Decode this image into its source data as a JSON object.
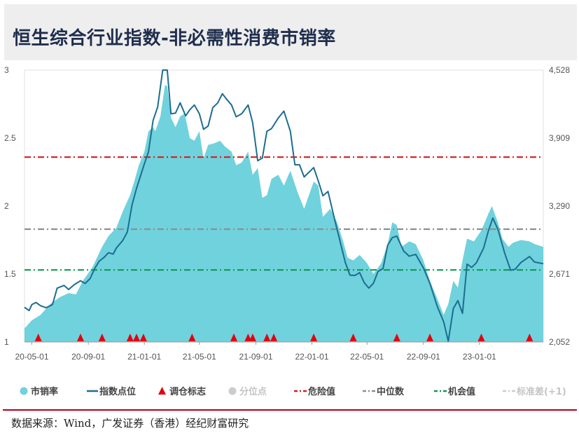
{
  "title": "恒生综合行业指数-非必需性消费市销率",
  "source": "数据来源：Wind，广发证券（香港）经纪财富研究",
  "colors": {
    "area": "#70d2dc",
    "index_line": "#1c6d90",
    "marker": "#e3000f",
    "danger": "#d01f1f",
    "median": "#8a8f96",
    "opportunity": "#0f9a55",
    "muted": "#cccccc",
    "axis": "#555555"
  },
  "legend": [
    {
      "label": "市销率",
      "icon": "teal-circle-icon",
      "muted": false
    },
    {
      "label": "指数点位",
      "icon": "blue-line-icon",
      "muted": false
    },
    {
      "label": "调仓标志",
      "icon": "red-triangle-icon",
      "muted": false
    },
    {
      "label": "分位点",
      "icon": "gray-circle-icon",
      "muted": true
    },
    {
      "label": "危险值",
      "icon": "red-dashdot-icon",
      "muted": false
    },
    {
      "label": "中位数",
      "icon": "gray-dashdot-icon",
      "muted": false
    },
    {
      "label": "机会值",
      "icon": "green-dashdot-icon",
      "muted": false
    },
    {
      "label": "标准差(+1)",
      "icon": "lightgray-dashdot-icon",
      "muted": true
    }
  ],
  "chart_data": {
    "type": "area",
    "x_range": [
      "2020-04-15",
      "2023-05-20"
    ],
    "x_tick_labels": [
      {
        "date": "2020-05-01",
        "label": "20-05-01"
      },
      {
        "date": "2020-09-01",
        "label": "20-09-01"
      },
      {
        "date": "2021-01-01",
        "label": "21-01-01"
      },
      {
        "date": "2021-05-01",
        "label": "21-05-01"
      },
      {
        "date": "2021-09-01",
        "label": "21-09-01"
      },
      {
        "date": "2022-01-01",
        "label": "22-01-01"
      },
      {
        "date": "2022-05-01",
        "label": "22-05-01"
      },
      {
        "date": "2022-09-01",
        "label": "22-09-01"
      },
      {
        "date": "2023-01-01",
        "label": "23-01-01"
      }
    ],
    "y_left": {
      "min": 1,
      "max": 3,
      "ticks": [
        1,
        1.5,
        2,
        2.5,
        3
      ],
      "tick_labels": [
        "1",
        "1.5",
        "2",
        "2.5",
        "3"
      ]
    },
    "y_right": {
      "min": 2052,
      "max": 4528,
      "ticks": [
        2052,
        2671,
        3290,
        3909,
        4528
      ],
      "tick_labels": [
        "2,052",
        "2,671",
        "3,290",
        "3,909",
        "4,528"
      ]
    },
    "reference_lines": [
      {
        "name": "危险值",
        "value": 2.36,
        "color": "#d01f1f"
      },
      {
        "name": "中位数",
        "value": 1.83,
        "color": "#8a8f96"
      },
      {
        "name": "机会值",
        "value": 1.53,
        "color": "#0f9a55"
      }
    ],
    "series": [
      {
        "name": "市销率",
        "axis": "left",
        "kind": "area",
        "points": [
          [
            "2020-04-15",
            1.1
          ],
          [
            "2020-05-01",
            1.16
          ],
          [
            "2020-05-20",
            1.2
          ],
          [
            "2020-06-10",
            1.28
          ],
          [
            "2020-07-01",
            1.33
          ],
          [
            "2020-07-20",
            1.36
          ],
          [
            "2020-08-05",
            1.35
          ],
          [
            "2020-08-20",
            1.45
          ],
          [
            "2020-09-10",
            1.55
          ],
          [
            "2020-10-01",
            1.7
          ],
          [
            "2020-10-15",
            1.78
          ],
          [
            "2020-11-01",
            1.84
          ],
          [
            "2020-11-15",
            1.96
          ],
          [
            "2020-12-01",
            2.08
          ],
          [
            "2020-12-10",
            2.18
          ],
          [
            "2020-12-20",
            2.3
          ],
          [
            "2021-01-01",
            2.4
          ],
          [
            "2021-01-10",
            2.55
          ],
          [
            "2021-01-20",
            2.58
          ],
          [
            "2021-01-25",
            2.55
          ],
          [
            "2021-02-05",
            2.66
          ],
          [
            "2021-02-15",
            2.89
          ],
          [
            "2021-02-20",
            2.88
          ],
          [
            "2021-02-28",
            2.65
          ],
          [
            "2021-03-10",
            2.58
          ],
          [
            "2021-03-20",
            2.66
          ],
          [
            "2021-03-30",
            2.68
          ],
          [
            "2021-04-10",
            2.5
          ],
          [
            "2021-04-20",
            2.48
          ],
          [
            "2021-05-01",
            2.55
          ],
          [
            "2021-05-10",
            2.35
          ],
          [
            "2021-05-20",
            2.45
          ],
          [
            "2021-06-01",
            2.46
          ],
          [
            "2021-06-15",
            2.48
          ],
          [
            "2021-06-25",
            2.44
          ],
          [
            "2021-07-10",
            2.4
          ],
          [
            "2021-07-20",
            2.3
          ],
          [
            "2021-08-01",
            2.32
          ],
          [
            "2021-08-15",
            2.4
          ],
          [
            "2021-08-25",
            2.23
          ],
          [
            "2021-09-05",
            2.28
          ],
          [
            "2021-09-15",
            2.06
          ],
          [
            "2021-09-25",
            2.08
          ],
          [
            "2021-10-05",
            2.2
          ],
          [
            "2021-10-20",
            2.23
          ],
          [
            "2021-11-01",
            2.15
          ],
          [
            "2021-11-15",
            2.26
          ],
          [
            "2021-12-01",
            2.1
          ],
          [
            "2021-12-15",
            1.98
          ],
          [
            "2022-01-05",
            2.18
          ],
          [
            "2022-01-15",
            2.15
          ],
          [
            "2022-01-25",
            1.92
          ],
          [
            "2022-02-10",
            1.98
          ],
          [
            "2022-02-25",
            1.88
          ],
          [
            "2022-03-10",
            1.74
          ],
          [
            "2022-03-20",
            1.62
          ],
          [
            "2022-04-01",
            1.6
          ],
          [
            "2022-04-15",
            1.64
          ],
          [
            "2022-05-01",
            1.58
          ],
          [
            "2022-05-15",
            1.5
          ],
          [
            "2022-06-01",
            1.58
          ],
          [
            "2022-06-15",
            1.72
          ],
          [
            "2022-06-25",
            1.88
          ],
          [
            "2022-07-05",
            1.86
          ],
          [
            "2022-07-15",
            1.7
          ],
          [
            "2022-08-01",
            1.74
          ],
          [
            "2022-08-15",
            1.72
          ],
          [
            "2022-09-01",
            1.6
          ],
          [
            "2022-09-15",
            1.45
          ],
          [
            "2022-10-01",
            1.32
          ],
          [
            "2022-10-15",
            1.2
          ],
          [
            "2022-10-25",
            1.28
          ],
          [
            "2022-11-05",
            1.45
          ],
          [
            "2022-11-15",
            1.4
          ],
          [
            "2022-11-25",
            1.6
          ],
          [
            "2022-12-05",
            1.76
          ],
          [
            "2022-12-20",
            1.74
          ],
          [
            "2023-01-05",
            1.82
          ],
          [
            "2023-01-20",
            1.94
          ],
          [
            "2023-01-28",
            2.0
          ],
          [
            "2023-02-10",
            1.88
          ],
          [
            "2023-02-20",
            1.76
          ],
          [
            "2023-03-05",
            1.7
          ],
          [
            "2023-03-15",
            1.73
          ],
          [
            "2023-04-01",
            1.75
          ],
          [
            "2023-04-20",
            1.74
          ],
          [
            "2023-05-01",
            1.72
          ],
          [
            "2023-05-20",
            1.7
          ]
        ]
      },
      {
        "name": "指数点位",
        "axis": "right",
        "kind": "line",
        "points": [
          [
            "2020-04-15",
            2368
          ],
          [
            "2020-04-25",
            2338
          ],
          [
            "2020-05-01",
            2393
          ],
          [
            "2020-05-10",
            2412
          ],
          [
            "2020-05-20",
            2382
          ],
          [
            "2020-06-01",
            2364
          ],
          [
            "2020-06-15",
            2393
          ],
          [
            "2020-06-25",
            2542
          ],
          [
            "2020-07-10",
            2567
          ],
          [
            "2020-07-20",
            2530
          ],
          [
            "2020-08-01",
            2573
          ],
          [
            "2020-08-15",
            2610
          ],
          [
            "2020-08-25",
            2585
          ],
          [
            "2020-09-05",
            2630
          ],
          [
            "2020-09-15",
            2722
          ],
          [
            "2020-09-25",
            2790
          ],
          [
            "2020-10-05",
            2821
          ],
          [
            "2020-10-15",
            2865
          ],
          [
            "2020-10-25",
            2852
          ],
          [
            "2020-11-01",
            2908
          ],
          [
            "2020-11-15",
            2976
          ],
          [
            "2020-11-25",
            3054
          ],
          [
            "2020-12-05",
            3296
          ],
          [
            "2020-12-15",
            3451
          ],
          [
            "2021-01-01",
            3674
          ],
          [
            "2021-01-10",
            3785
          ],
          [
            "2021-01-20",
            4068
          ],
          [
            "2021-01-30",
            4192
          ],
          [
            "2021-02-10",
            4528
          ],
          [
            "2021-02-20",
            4528
          ],
          [
            "2021-02-28",
            4130
          ],
          [
            "2021-03-10",
            4136
          ],
          [
            "2021-03-20",
            4230
          ],
          [
            "2021-04-01",
            4111
          ],
          [
            "2021-04-10",
            4167
          ],
          [
            "2021-04-20",
            4210
          ],
          [
            "2021-05-01",
            4130
          ],
          [
            "2021-05-10",
            3989
          ],
          [
            "2021-05-20",
            4019
          ],
          [
            "2021-05-30",
            4186
          ],
          [
            "2021-06-10",
            4230
          ],
          [
            "2021-06-20",
            4313
          ],
          [
            "2021-06-30",
            4259
          ],
          [
            "2021-07-10",
            4210
          ],
          [
            "2021-07-20",
            4103
          ],
          [
            "2021-08-01",
            4130
          ],
          [
            "2021-08-15",
            4210
          ],
          [
            "2021-08-25",
            4049
          ],
          [
            "2021-09-05",
            3702
          ],
          [
            "2021-09-15",
            3727
          ],
          [
            "2021-09-25",
            3970
          ],
          [
            "2021-10-05",
            3995
          ],
          [
            "2021-10-20",
            4093
          ],
          [
            "2021-11-01",
            4155
          ],
          [
            "2021-11-15",
            3971
          ],
          [
            "2021-11-25",
            3666
          ],
          [
            "2021-12-05",
            3666
          ],
          [
            "2021-12-15",
            3555
          ],
          [
            "2022-01-05",
            3640
          ],
          [
            "2022-01-15",
            3517
          ],
          [
            "2022-01-25",
            3383
          ],
          [
            "2022-02-05",
            3423
          ],
          [
            "2022-02-20",
            3159
          ],
          [
            "2022-03-05",
            2940
          ],
          [
            "2022-03-15",
            2772
          ],
          [
            "2022-03-25",
            2661
          ],
          [
            "2022-04-05",
            2658
          ],
          [
            "2022-04-15",
            2684
          ],
          [
            "2022-04-25",
            2592
          ],
          [
            "2022-05-05",
            2543
          ],
          [
            "2022-05-15",
            2587
          ],
          [
            "2022-05-25",
            2694
          ],
          [
            "2022-06-05",
            2720
          ],
          [
            "2022-06-15",
            2933
          ],
          [
            "2022-06-25",
            3002
          ],
          [
            "2022-07-05",
            3016
          ],
          [
            "2022-07-20",
            2879
          ],
          [
            "2022-08-01",
            2833
          ],
          [
            "2022-08-15",
            2850
          ],
          [
            "2022-09-01",
            2726
          ],
          [
            "2022-09-15",
            2587
          ],
          [
            "2022-10-01",
            2377
          ],
          [
            "2022-10-15",
            2236
          ],
          [
            "2022-10-25",
            2059
          ],
          [
            "2022-11-05",
            2357
          ],
          [
            "2022-11-15",
            2429
          ],
          [
            "2022-11-25",
            2313
          ],
          [
            "2022-12-05",
            2761
          ],
          [
            "2022-12-15",
            2731
          ],
          [
            "2022-12-25",
            2772
          ],
          [
            "2023-01-10",
            2908
          ],
          [
            "2023-01-20",
            3058
          ],
          [
            "2023-01-30",
            3180
          ],
          [
            "2023-02-10",
            3080
          ],
          [
            "2023-02-25",
            2860
          ],
          [
            "2023-03-10",
            2705
          ],
          [
            "2023-03-20",
            2715
          ],
          [
            "2023-04-01",
            2775
          ],
          [
            "2023-04-20",
            2830
          ],
          [
            "2023-05-01",
            2780
          ],
          [
            "2023-05-20",
            2765
          ]
        ]
      }
    ],
    "rebalance_markers": [
      "2020-05-15",
      "2020-08-15",
      "2020-10-01",
      "2020-12-01",
      "2020-12-15",
      "2020-12-30",
      "2021-04-15",
      "2021-07-15",
      "2021-08-15",
      "2021-08-25",
      "2021-09-25",
      "2021-10-10",
      "2022-01-05",
      "2022-04-01",
      "2022-07-05",
      "2022-09-15",
      "2023-01-05",
      "2023-04-20"
    ]
  }
}
